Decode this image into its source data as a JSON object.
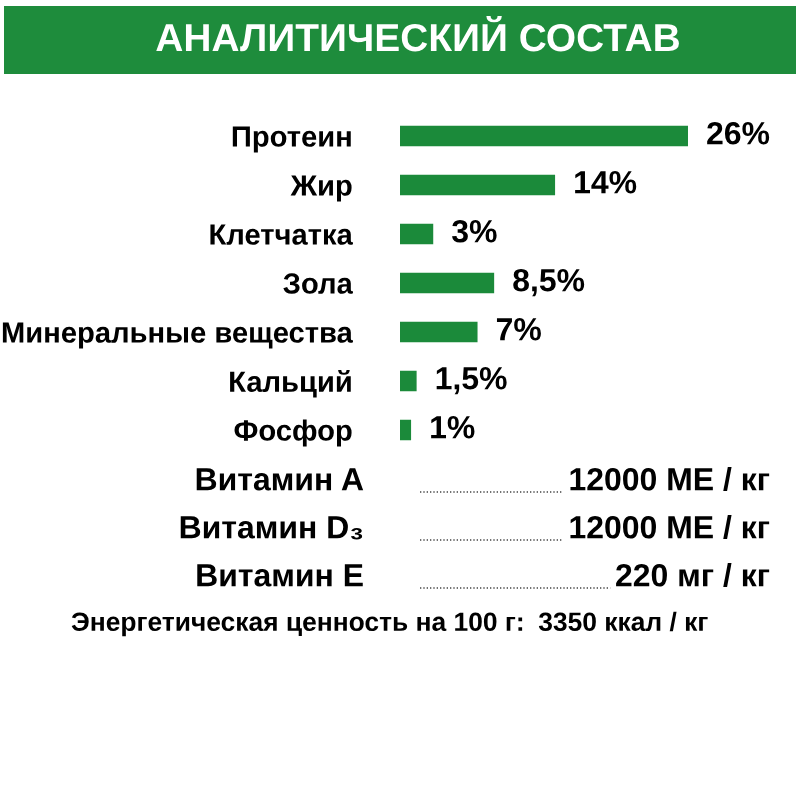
{
  "chart_data": {
    "type": "bar",
    "orientation": "horizontal",
    "title": "АНАЛИТИЧЕСКИЙ СОСТАВ",
    "categories": [
      "Протеин",
      "Жир",
      "Клетчатка",
      "Зола",
      "Минеральные вещества",
      "Кальций",
      "Фосфор"
    ],
    "values": [
      26,
      14,
      3,
      8.5,
      7,
      1.5,
      1
    ],
    "value_labels": [
      "26%",
      "14%",
      "3%",
      "8,5%",
      "7%",
      "1,5%",
      "1%"
    ],
    "color": "#1b8a3a",
    "tick_labels": "y",
    "grid": false,
    "legend": false,
    "annotations": [
      "Витамин A",
      "12000 МЕ / кг",
      "Витамин D₃",
      "12000 МЕ / кг",
      "Витамин E",
      "220 мг / кг",
      "Энергетическая ценность на 100 г:",
      "3350 ккал / кг"
    ]
  }
}
